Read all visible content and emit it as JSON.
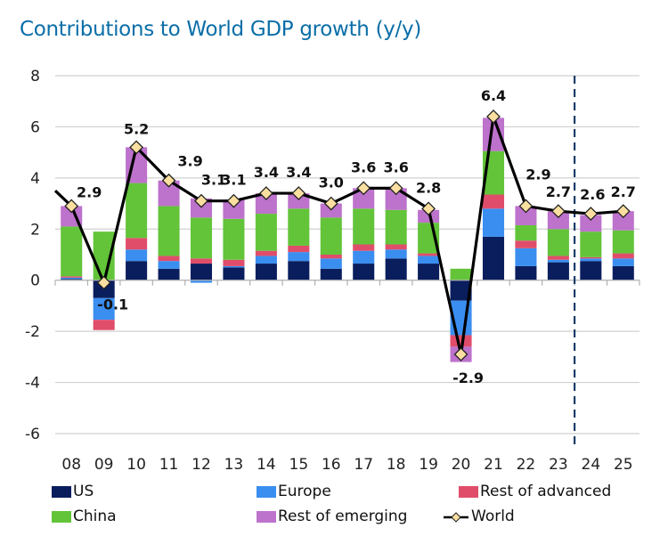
{
  "title": "Contributions to World GDP growth (y/y)",
  "colors": {
    "US": "#0a1e5e",
    "Europe": "#3a8ef0",
    "Rest of advanced": "#e04d6a",
    "China": "#63c43a",
    "Rest of emerging": "#bd72cc",
    "World_line": "#000000",
    "World_marker": "#fbdfa0",
    "grid": "#d0d0d0",
    "forecast_line": "#1a3d6b"
  },
  "chart_data": {
    "type": "bar",
    "stacked": true,
    "title": "Contributions to World GDP growth (y/y)",
    "xlabel": "",
    "ylabel": "",
    "ylim": [
      -6,
      8
    ],
    "yticks": [
      8,
      6,
      4,
      2,
      0,
      -2,
      -4,
      -6
    ],
    "grid": true,
    "legend_position": "bottom",
    "forecast_divider_between": [
      "23",
      "24"
    ],
    "categories": [
      "08",
      "09",
      "10",
      "11",
      "12",
      "13",
      "14",
      "15",
      "16",
      "17",
      "18",
      "19",
      "20",
      "21",
      "22",
      "23",
      "24",
      "25"
    ],
    "series": [
      {
        "name": "US",
        "values": [
          0.05,
          -0.7,
          0.75,
          0.45,
          0.65,
          0.5,
          0.65,
          0.75,
          0.45,
          0.65,
          0.85,
          0.65,
          -0.8,
          1.7,
          0.55,
          0.7,
          0.75,
          0.55
        ]
      },
      {
        "name": "Europe",
        "values": [
          0.05,
          -0.85,
          0.45,
          0.3,
          -0.1,
          0.05,
          0.3,
          0.35,
          0.4,
          0.5,
          0.35,
          0.3,
          -1.35,
          1.1,
          0.7,
          0.1,
          0.1,
          0.3
        ]
      },
      {
        "name": "Rest of advanced",
        "values": [
          0.05,
          -0.4,
          0.45,
          0.2,
          0.2,
          0.25,
          0.2,
          0.25,
          0.15,
          0.25,
          0.2,
          0.1,
          -0.45,
          0.55,
          0.3,
          0.15,
          0.05,
          0.2
        ]
      },
      {
        "name": "China",
        "values": [
          1.95,
          1.9,
          2.15,
          1.95,
          1.6,
          1.6,
          1.45,
          1.45,
          1.45,
          1.4,
          1.35,
          1.2,
          0.45,
          1.7,
          0.6,
          1.05,
          1.0,
          0.9
        ]
      },
      {
        "name": "Rest of emerging",
        "values": [
          0.8,
          0.0,
          1.4,
          1.0,
          0.75,
          0.75,
          0.8,
          0.6,
          0.55,
          0.8,
          0.85,
          0.5,
          -0.6,
          1.3,
          0.75,
          0.7,
          0.65,
          0.75
        ]
      }
    ],
    "line": {
      "name": "World",
      "values": [
        2.9,
        -0.1,
        5.2,
        3.9,
        3.1,
        3.1,
        3.4,
        3.4,
        3.0,
        3.6,
        3.6,
        2.8,
        -2.9,
        6.4,
        2.9,
        2.7,
        2.6,
        2.7
      ],
      "labels": [
        "2.9",
        "-0.1",
        "5.2",
        "3.9",
        "3.1",
        "3.1",
        "3.4",
        "3.4",
        "3.0",
        "3.6",
        "3.6",
        "2.8",
        "-2.9",
        "6.4",
        "2.9",
        "2.7",
        "2.6",
        "2.7"
      ],
      "prior_value": 4.4
    }
  },
  "legend": [
    {
      "key": "US",
      "label": "US",
      "type": "swatch"
    },
    {
      "key": "Europe",
      "label": "Europe",
      "type": "swatch"
    },
    {
      "key": "Rest of advanced",
      "label": "Rest of advanced",
      "type": "swatch"
    },
    {
      "key": "China",
      "label": "China",
      "type": "swatch"
    },
    {
      "key": "Rest of emerging",
      "label": "Rest of emerging",
      "type": "swatch"
    },
    {
      "key": "World",
      "label": "World",
      "type": "line"
    }
  ]
}
